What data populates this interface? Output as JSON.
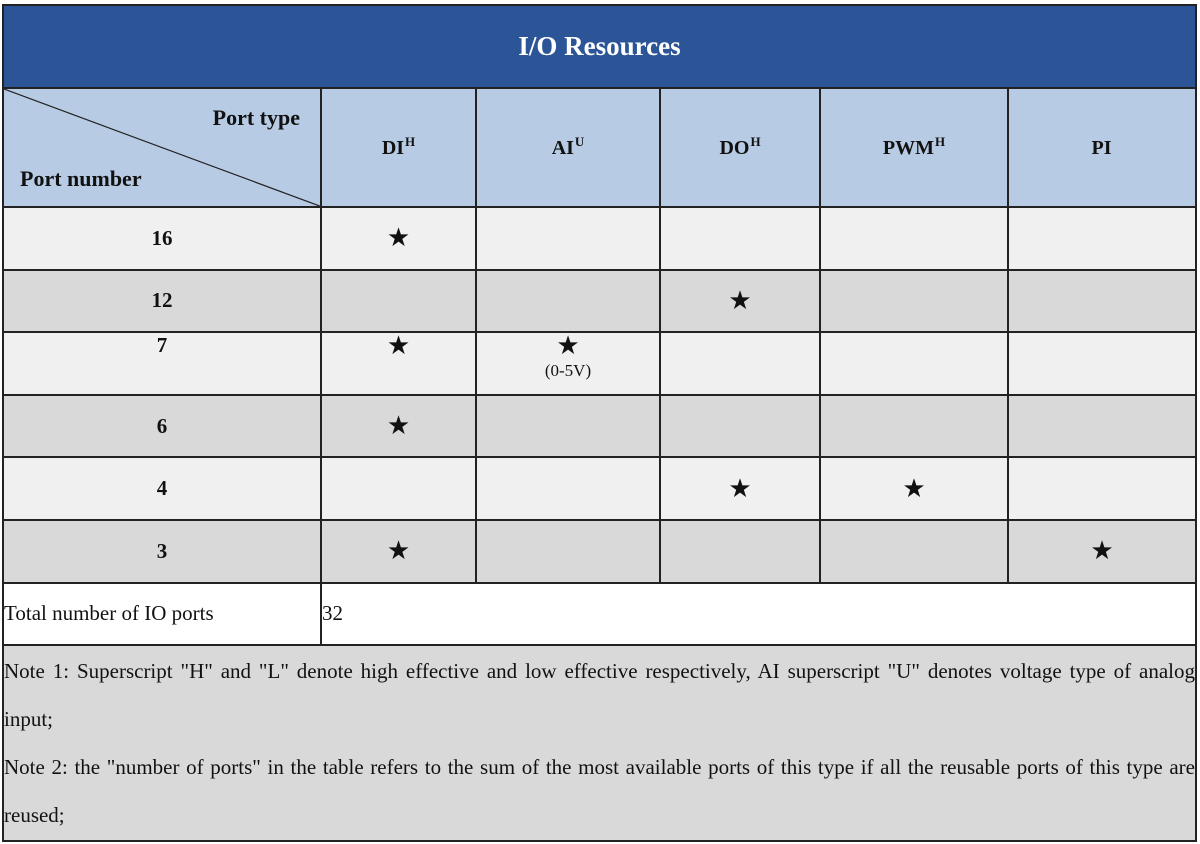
{
  "title": "I/O Resources",
  "header": {
    "port_type": "Port type",
    "port_number": "Port number",
    "columns": [
      {
        "label": "DI",
        "sup": "H"
      },
      {
        "label": "AI",
        "sup": "U"
      },
      {
        "label": "DO",
        "sup": "H"
      },
      {
        "label": "PWM",
        "sup": "H"
      },
      {
        "label": "PI",
        "sup": ""
      }
    ]
  },
  "star_glyph": "★",
  "rows": [
    {
      "number": "16",
      "marks": [
        true,
        false,
        false,
        false,
        false
      ]
    },
    {
      "number": "12",
      "marks": [
        false,
        false,
        true,
        false,
        false
      ]
    },
    {
      "number": "7",
      "marks": [
        true,
        true,
        false,
        false,
        false
      ],
      "ai_note": "(0-5V)"
    },
    {
      "number": "6",
      "marks": [
        true,
        false,
        false,
        false,
        false
      ]
    },
    {
      "number": "4",
      "marks": [
        false,
        false,
        true,
        true,
        false
      ]
    },
    {
      "number": "3",
      "marks": [
        true,
        false,
        false,
        false,
        true
      ]
    }
  ],
  "total": {
    "label": "Total number of IO ports",
    "value": "32"
  },
  "notes": {
    "note1": "Note 1: Superscript \"H\" and \"L\" denote high effective and low effective respectively, AI superscript \"U\" denotes voltage type of analog input;",
    "note2": "Note 2: the \"number of ports\" in the table refers to the sum of the most available ports of this type if all the reusable ports of this type are reused;"
  },
  "colors": {
    "title_bg": "#2b5597",
    "header_bg": "#b7cce4",
    "row_light": "#f0f0f0",
    "row_dark": "#d9d9d9"
  }
}
